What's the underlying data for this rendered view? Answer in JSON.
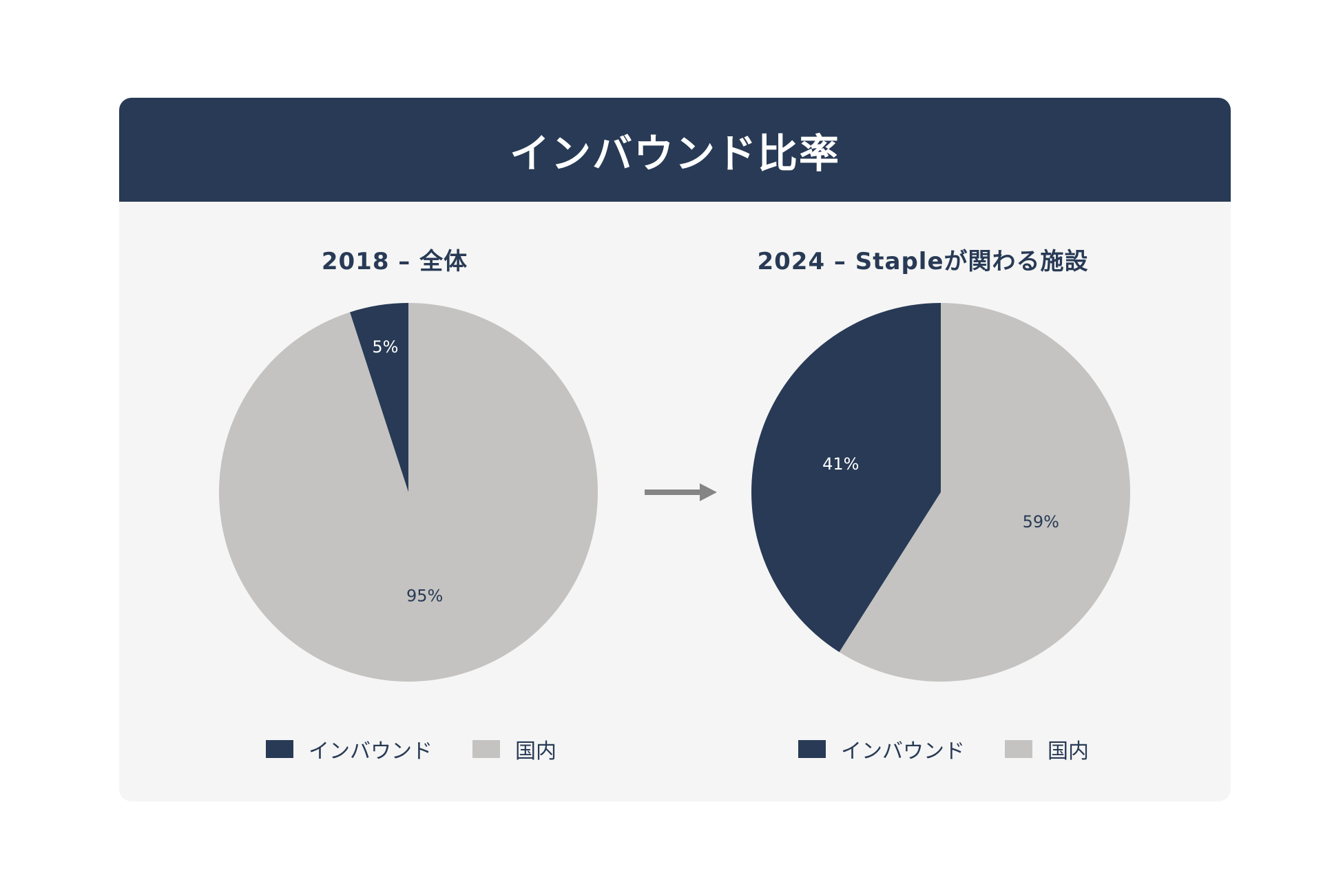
{
  "page": {
    "title": "インバウンド比率"
  },
  "colors": {
    "inbound": "#283a55",
    "domestic": "#c4c3c1",
    "header": "#283a55",
    "card_bg": "#f5f5f5",
    "arrow": "#858585"
  },
  "chart_data": [
    {
      "type": "pie",
      "title": "2018 – 全体",
      "categories": [
        "インバウンド",
        "国内"
      ],
      "values": [
        5,
        95
      ],
      "labels": [
        "5%",
        "95%"
      ],
      "colors": [
        "#283a55",
        "#c4c3c1"
      ],
      "legend": "bottom"
    },
    {
      "type": "pie",
      "title": "2024 – Stapleが関わる施設",
      "categories": [
        "インバウンド",
        "国内"
      ],
      "values": [
        41,
        59
      ],
      "labels": [
        "41%",
        "59%"
      ],
      "colors": [
        "#283a55",
        "#c4c3c1"
      ],
      "legend": "bottom"
    }
  ],
  "arrow_icon": "right-arrow-icon"
}
